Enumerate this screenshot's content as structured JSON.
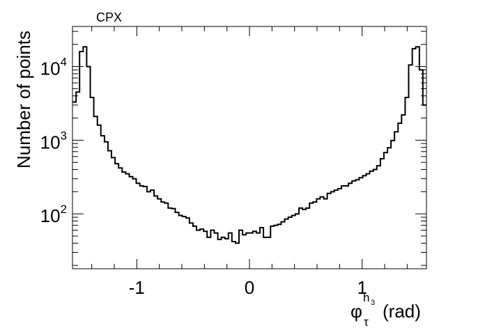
{
  "chart_data": {
    "type": "histogram",
    "title": "CPX",
    "xlabel": {
      "main": "φ",
      "superscript": "h",
      "superscript_index": "3",
      "subscript": "τ",
      "unit": "(rad)"
    },
    "ylabel": "Number of points",
    "y_scale": "log",
    "xlim": [
      -1.571,
      1.571
    ],
    "ylim": [
      18,
      35000
    ],
    "x_ticks": [
      {
        "value": -1,
        "label": "-1"
      },
      {
        "value": 0,
        "label": "0"
      },
      {
        "value": 1,
        "label": "1"
      }
    ],
    "y_ticks": [
      {
        "value": 100,
        "base": "10",
        "exponent": "2"
      },
      {
        "value": 1000,
        "base": "10",
        "exponent": "3"
      },
      {
        "value": 10000,
        "base": "10",
        "exponent": "4"
      }
    ],
    "series": [
      {
        "line_color": "#000000",
        "bin_edges": [
          -1.571,
          -1.539,
          -1.508,
          -1.476,
          -1.445,
          -1.413,
          -1.382,
          -1.35,
          -1.319,
          -1.287,
          -1.256,
          -1.225,
          -1.193,
          -1.162,
          -1.13,
          -1.099,
          -1.067,
          -1.036,
          -1.005,
          -0.973,
          -0.942,
          -0.91,
          -0.879,
          -0.847,
          -0.816,
          -0.784,
          -0.753,
          -0.722,
          -0.69,
          -0.659,
          -0.627,
          -0.596,
          -0.564,
          -0.533,
          -0.501,
          -0.47,
          -0.439,
          -0.407,
          -0.376,
          -0.344,
          -0.313,
          -0.281,
          -0.25,
          -0.218,
          -0.187,
          -0.156,
          -0.124,
          -0.093,
          -0.061,
          -0.03,
          0.0,
          0.03,
          0.061,
          0.093,
          0.124,
          0.156,
          0.187,
          0.218,
          0.25,
          0.281,
          0.313,
          0.344,
          0.376,
          0.407,
          0.439,
          0.47,
          0.501,
          0.533,
          0.564,
          0.596,
          0.627,
          0.659,
          0.69,
          0.722,
          0.753,
          0.784,
          0.816,
          0.847,
          0.879,
          0.91,
          0.942,
          0.973,
          1.005,
          1.036,
          1.067,
          1.099,
          1.13,
          1.162,
          1.193,
          1.225,
          1.256,
          1.287,
          1.319,
          1.35,
          1.382,
          1.413,
          1.445,
          1.476,
          1.508,
          1.539,
          1.571
        ],
        "counts": [
          3300,
          4500,
          16000,
          18500,
          10000,
          3800,
          2100,
          1600,
          1150,
          950,
          720,
          580,
          480,
          420,
          370,
          350,
          320,
          300,
          260,
          240,
          235,
          200,
          210,
          175,
          160,
          145,
          140,
          120,
          118,
          105,
          95,
          92,
          88,
          75,
          68,
          60,
          62,
          58,
          48,
          60,
          55,
          45,
          48,
          46,
          55,
          42,
          40,
          60,
          52,
          55,
          55,
          58,
          55,
          65,
          48,
          48,
          68,
          70,
          72,
          78,
          85,
          90,
          95,
          100,
          120,
          115,
          120,
          140,
          145,
          160,
          170,
          160,
          190,
          200,
          210,
          220,
          240,
          240,
          260,
          280,
          290,
          310,
          330,
          350,
          380,
          400,
          450,
          560,
          680,
          790,
          990,
          1300,
          1700,
          2200,
          3800,
          10500,
          17500,
          18500,
          9000,
          3000
        ]
      }
    ]
  }
}
